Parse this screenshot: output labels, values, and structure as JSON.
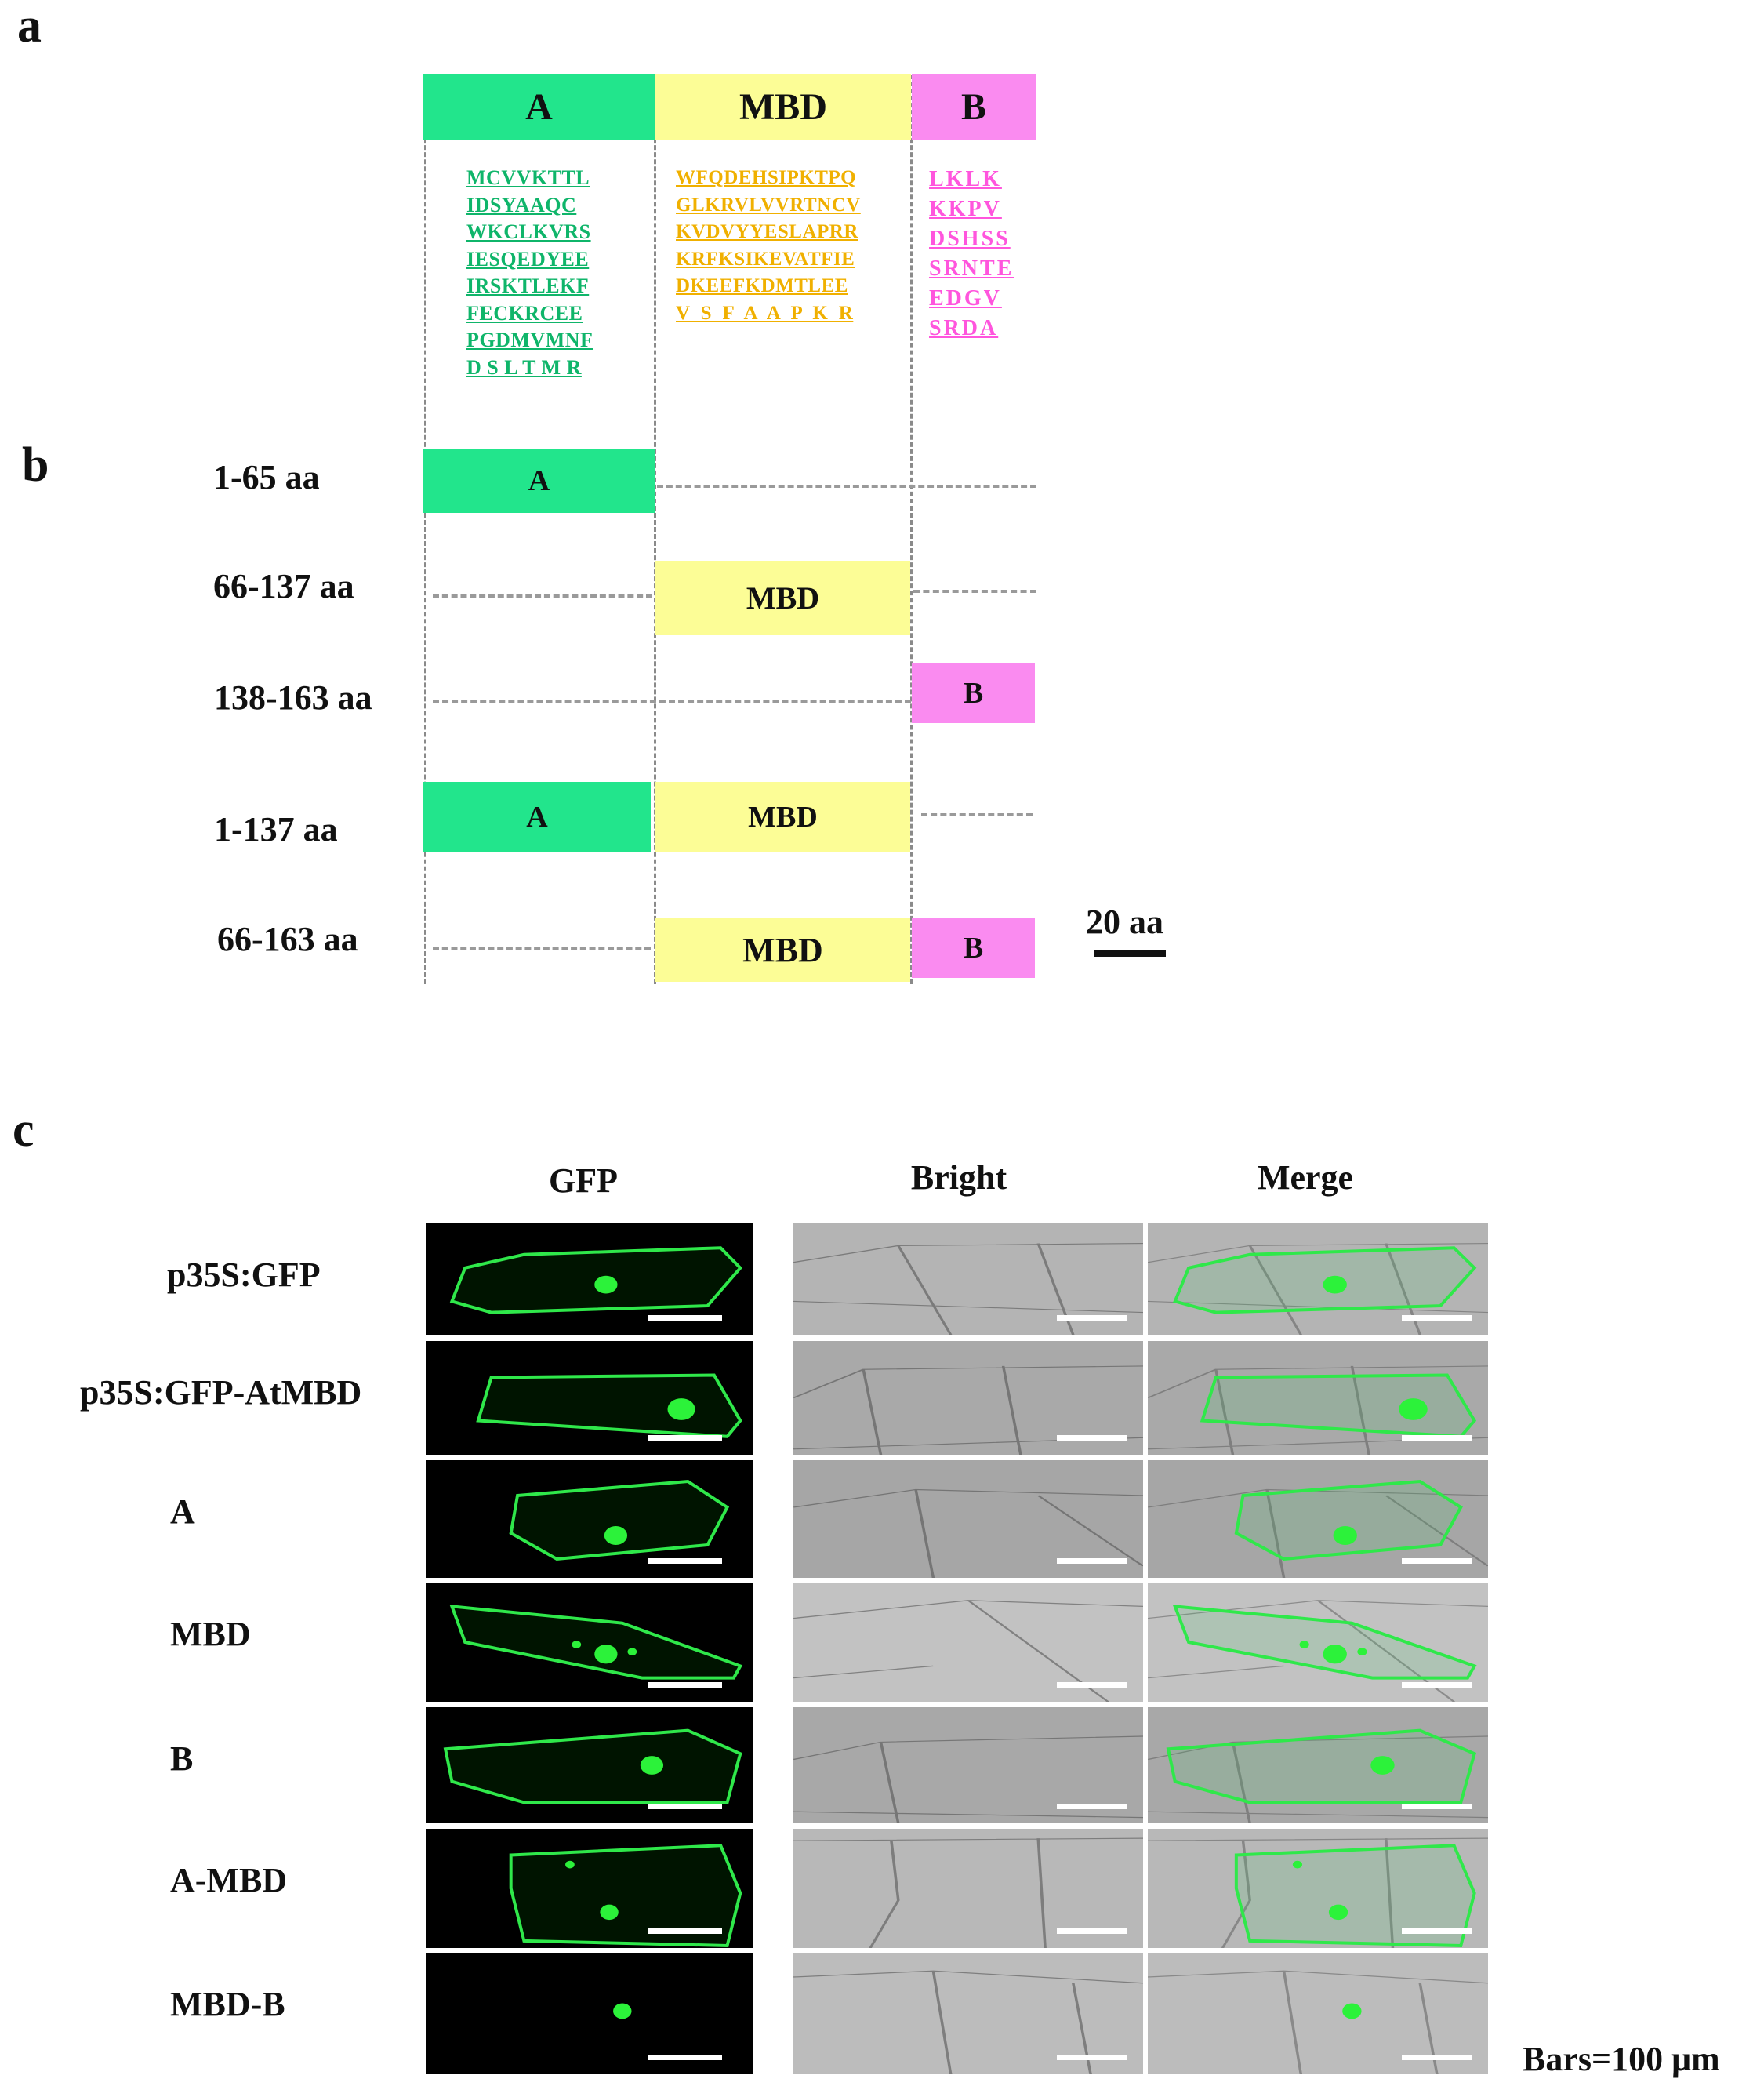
{
  "panels": {
    "a": "a",
    "b": "b",
    "c": "c"
  },
  "colors": {
    "A": "#22e58c",
    "MBD": "#fcfd96",
    "B": "#fa8bf0",
    "A_text": "#0fb56a",
    "MBD_text": "#f0b000",
    "B_text": "#ff55dd"
  },
  "domain_a": {
    "headers": {
      "A": "A",
      "MBD": "MBD",
      "B": "B"
    },
    "seq_A": "MCVVKTTL\nIDSYAAQC\nWKCLKVRS\nIESQEDYEE\nIRSKTLEKF\nFECKRCEE\nPGDMVMNF\nD S L T M R",
    "seq_MBD": "WFQDEHSIPKTPQ\nGLKRVLVVRTNCV\nKVDVYYESLAPRR\nKRFKSIKEVATFIE\nDKEEFKDMTLEE\nV  S  F  A  A  P  K  R",
    "seq_B": "LKLK\nKKPV\nDSHSS\nSRNTE\nEDGV\nSRDA"
  },
  "constructs": [
    {
      "label": "1-65 aa",
      "segments": [
        "A"
      ]
    },
    {
      "label": "66-137 aa",
      "segments": [
        "MBD"
      ]
    },
    {
      "label": "138-163 aa",
      "segments": [
        "B"
      ]
    },
    {
      "label": "1-137 aa",
      "segments": [
        "A",
        "MBD"
      ]
    },
    {
      "label": "66-163 aa",
      "segments": [
        "MBD",
        "B"
      ]
    }
  ],
  "segment_labels": {
    "A": "A",
    "MBD": "MBD",
    "B": "B"
  },
  "scale": {
    "label": "20 aa"
  },
  "microscopy": {
    "columns": [
      "GFP",
      "Bright",
      "Merge"
    ],
    "rows": [
      "p35S:GFP",
      "p35S:GFP-AtMBD",
      "A",
      "MBD",
      "B",
      "A-MBD",
      "MBD-B"
    ],
    "bars_note": "Bars=100 μm"
  }
}
